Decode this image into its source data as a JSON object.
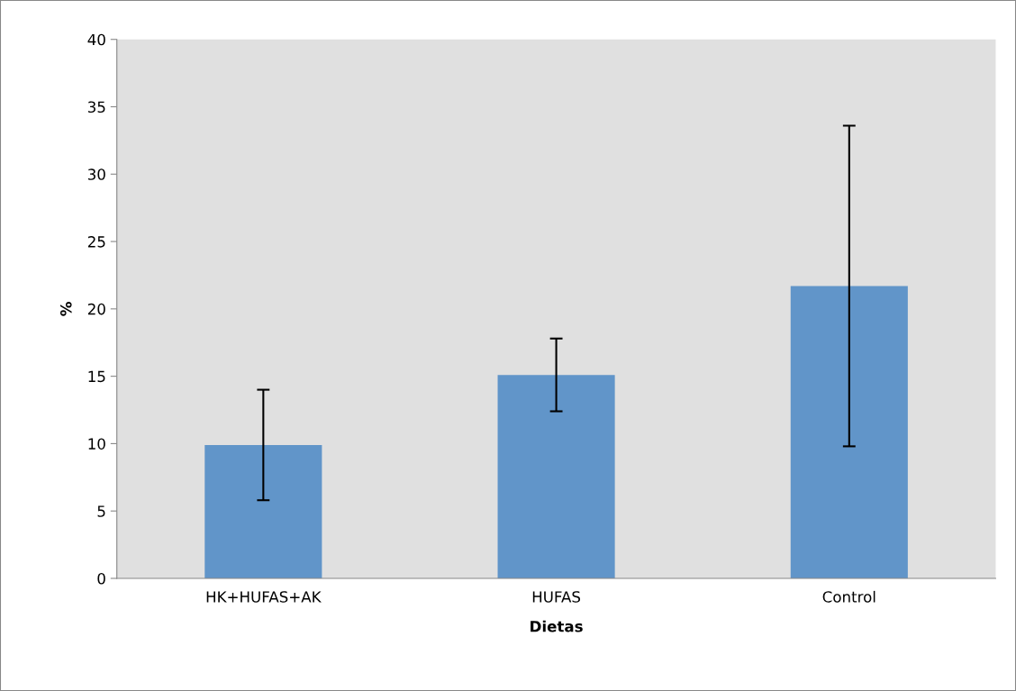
{
  "chart_data": {
    "type": "bar",
    "xlabel": "Dietas",
    "ylabel": "%",
    "categories": [
      "HK+HUFAS+AK",
      "HUFAS",
      "Control"
    ],
    "values": [
      9.9,
      15.1,
      21.7
    ],
    "errors": [
      4.1,
      2.7,
      11.9
    ],
    "color": "#6195c9",
    "ylim": [
      0,
      40
    ],
    "yticks": [
      0,
      5,
      10,
      15,
      20,
      25,
      30,
      35,
      40
    ],
    "grid": false
  }
}
